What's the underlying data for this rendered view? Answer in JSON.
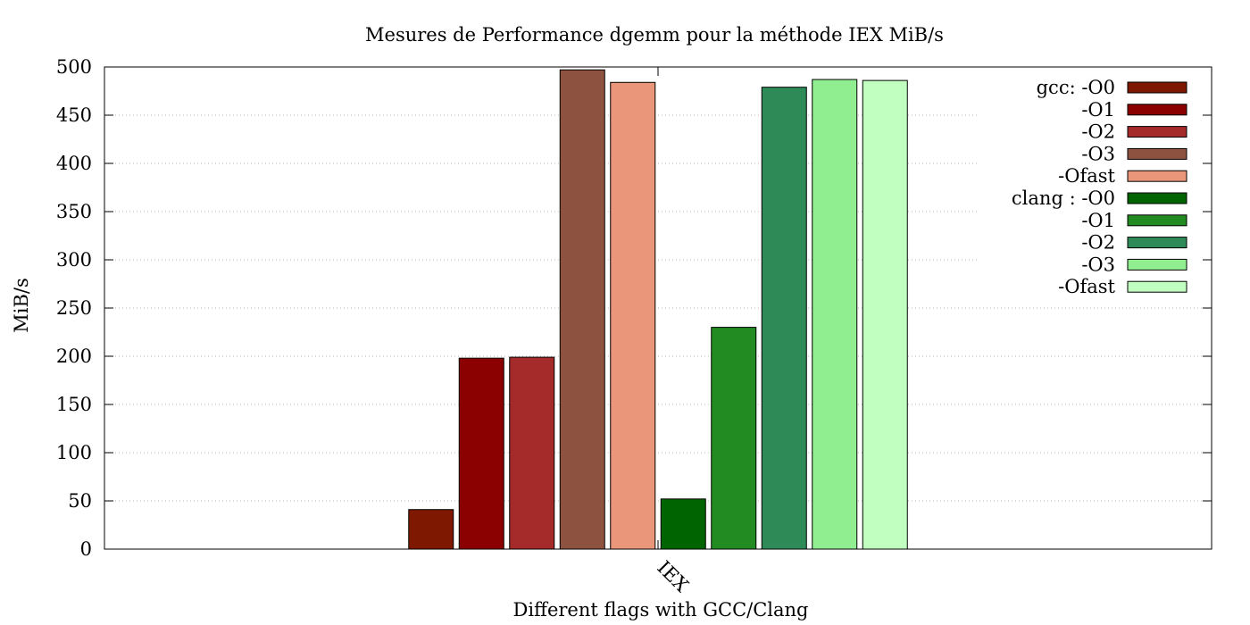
{
  "chart_data": {
    "type": "bar",
    "title": "Mesures de Performance dgemm pour la méthode IEX MiB/s",
    "xlabel": "Different flags with GCC/Clang",
    "ylabel": "MiB/s",
    "categories": [
      "IEX"
    ],
    "ylim": [
      0,
      500
    ],
    "yticks": [
      0,
      50,
      100,
      150,
      200,
      250,
      300,
      350,
      400,
      450,
      500
    ],
    "grid": true,
    "legend_position": "top-right",
    "series": [
      {
        "name": "gcc: -O0",
        "values": [
          41
        ],
        "color": "#7f1800"
      },
      {
        "name": "-O1",
        "values": [
          198
        ],
        "color": "#8b0000"
      },
      {
        "name": "-O2",
        "values": [
          199
        ],
        "color": "#a52a2a"
      },
      {
        "name": "-O3",
        "values": [
          497
        ],
        "color": "#8e5241"
      },
      {
        "name": "-Ofast",
        "values": [
          484
        ],
        "color": "#e9967a"
      },
      {
        "name": "clang : -O0",
        "values": [
          52
        ],
        "color": "#006400"
      },
      {
        "name": "-O1",
        "values": [
          230
        ],
        "color": "#228b22"
      },
      {
        "name": "-O2",
        "values": [
          479
        ],
        "color": "#2e8b57"
      },
      {
        "name": "-O3",
        "values": [
          487
        ],
        "color": "#90ee90"
      },
      {
        "name": "-Ofast",
        "values": [
          486
        ],
        "color": "#c1ffc1"
      }
    ]
  }
}
